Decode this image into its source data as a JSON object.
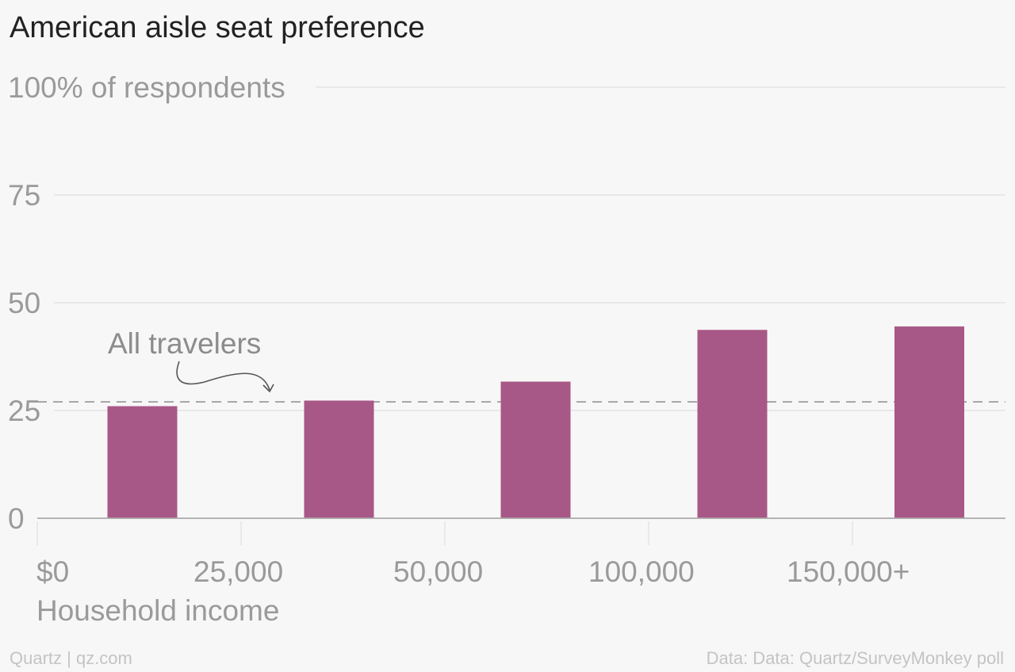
{
  "chart_data": {
    "type": "bar",
    "title": "American aisle seat preference",
    "ylabel": "of respondents",
    "xlabel": "Household income",
    "ylim": [
      0,
      100
    ],
    "yticks": [
      0,
      25,
      50,
      75,
      100
    ],
    "ytick_labels": [
      "0",
      "25",
      "50",
      "75",
      "100% of respondents"
    ],
    "xtick_labels": [
      "$0",
      "25,000",
      "50,000",
      "100,000",
      "150,000+"
    ],
    "categories": [
      "$0-25,000",
      "25,000-50,000",
      "50,000-100,000",
      "100,000-150,000",
      "150,000+"
    ],
    "values": [
      26,
      27.3,
      31.7,
      43.7,
      44.5
    ],
    "reference_line": {
      "label": "All travelers",
      "value": 27
    },
    "grid": true,
    "legend": "none",
    "colors": {
      "bar": "#a85886",
      "grid": "#e4e4e4",
      "axis": "#aaaaaa",
      "tick_text": "#9a9a9a",
      "reference": "#8c8c8c",
      "annotation": "#8c8c8c"
    }
  },
  "footer": {
    "source_left": "Quartz | qz.com",
    "source_right": "Data: Data: Quartz/SurveyMonkey poll"
  }
}
